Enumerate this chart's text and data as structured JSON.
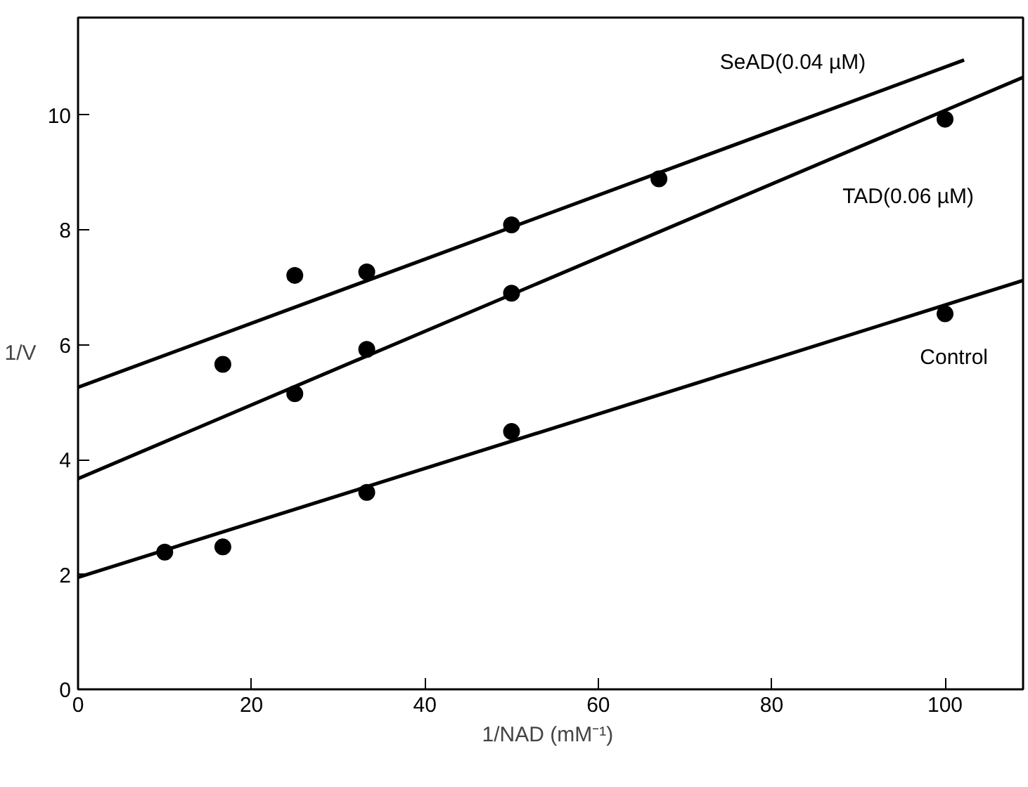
{
  "chart_data": {
    "type": "scatter",
    "xlabel": "1/NAD  (mM⁻¹)",
    "ylabel": "1/V",
    "xlim": [
      0,
      109
    ],
    "ylim": [
      0,
      11.7
    ],
    "xticks": [
      0,
      20,
      40,
      60,
      80,
      100
    ],
    "yticks": [
      0,
      2,
      4,
      6,
      8,
      10
    ],
    "grid": false,
    "marker": "circle",
    "series": [
      {
        "color": "#000000",
        "x": [
          10,
          16.7,
          33.3,
          50,
          100,
          16.7,
          25,
          33.3,
          50,
          100,
          25,
          33.3,
          50,
          67
        ],
        "values": [
          2.39,
          2.48,
          3.43,
          4.49,
          6.54,
          5.66,
          5.15,
          5.92,
          6.9,
          9.93,
          7.21,
          7.27,
          8.09,
          8.89
        ]
      },
      {
        "type": "line",
        "name": "Control",
        "color": "#000000",
        "line_style": "solid",
        "marker": "none",
        "x": [
          0,
          109
        ],
        "values": [
          1.95,
          7.12
        ]
      },
      {
        "type": "line",
        "name": "TAD(0.06 µM)",
        "color": "#000000",
        "line_style": "solid",
        "marker": "none",
        "x": [
          0,
          109
        ],
        "values": [
          3.67,
          10.66
        ]
      },
      {
        "type": "line",
        "name": "SeAD(0.04 µM)",
        "color": "#000000",
        "line_style": "solid",
        "marker": "none",
        "x": [
          0,
          102.2
        ],
        "values": [
          5.26,
          10.96
        ]
      }
    ]
  }
}
